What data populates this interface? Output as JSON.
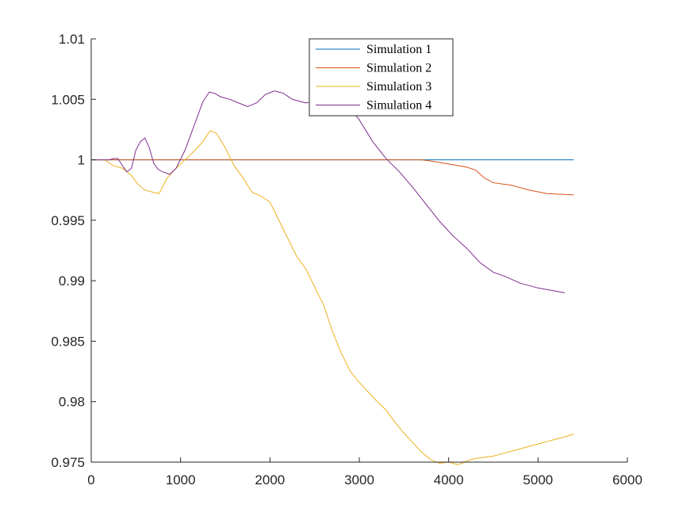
{
  "chart_data": {
    "type": "line",
    "title": "",
    "xlabel": "",
    "ylabel": "",
    "xlim": [
      0,
      6000
    ],
    "ylim": [
      0.975,
      1.01
    ],
    "xticks": [
      0,
      1000,
      2000,
      3000,
      4000,
      5000,
      6000
    ],
    "xtick_labels": [
      "0",
      "1000",
      "2000",
      "3000",
      "4000",
      "5000",
      "6000"
    ],
    "yticks": [
      0.975,
      0.98,
      0.985,
      0.99,
      0.995,
      1,
      1.005,
      1.01
    ],
    "ytick_labels": [
      "0.975",
      "0.98",
      "0.985",
      "0.99",
      "0.995",
      "1",
      "1.005",
      "1.01"
    ],
    "grid": false,
    "legend_position": "top-center",
    "series": [
      {
        "name": "Simulation 1",
        "color": "#0072BD",
        "x": [
          0,
          1000,
          2000,
          3000,
          4000,
          5000,
          5400
        ],
        "y": [
          1,
          1,
          1,
          1,
          1,
          1,
          1
        ]
      },
      {
        "name": "Simulation 2",
        "color": "#D95319",
        "x": [
          0,
          1000,
          2000,
          3000,
          3700,
          3800,
          4000,
          4200,
          4300,
          4400,
          4500,
          4700,
          4900,
          5100,
          5400
        ],
        "y": [
          1,
          1,
          1,
          1,
          1,
          0.9999,
          0.99965,
          0.9994,
          0.99915,
          0.9985,
          0.9981,
          0.9979,
          0.9975,
          0.9972,
          0.9971
        ]
      },
      {
        "name": "Simulation 3",
        "color": "#EDB120",
        "x": [
          0,
          150,
          250,
          350,
          450,
          520,
          600,
          700,
          760,
          850,
          950,
          1050,
          1150,
          1250,
          1330,
          1400,
          1500,
          1600,
          1700,
          1800,
          1900,
          2000,
          2100,
          2200,
          2300,
          2400,
          2500,
          2600,
          2700,
          2800,
          2900,
          3000,
          3100,
          3200,
          3300,
          3400,
          3500,
          3600,
          3700,
          3800,
          3900,
          4000,
          4100,
          4150,
          4200,
          4300,
          4400,
          4500,
          4600,
          4700,
          4800,
          4900,
          5000,
          5100,
          5200,
          5300,
          5400
        ],
        "y": [
          1,
          1,
          0.9995,
          0.9993,
          0.9987,
          0.998,
          0.9975,
          0.9973,
          0.9972,
          0.9985,
          0.9993,
          1,
          1.0007,
          1.0015,
          1.0024,
          1.0022,
          1.001,
          0.9995,
          0.9985,
          0.9973,
          0.997,
          0.9965,
          0.995,
          0.9935,
          0.992,
          0.991,
          0.9895,
          0.988,
          0.9858,
          0.984,
          0.9825,
          0.9816,
          0.9808,
          0.98,
          0.9793,
          0.9783,
          0.9774,
          0.9766,
          0.9758,
          0.9752,
          0.9749,
          0.975,
          0.9748,
          0.9749,
          0.9751,
          0.9753,
          0.9754,
          0.9755,
          0.9757,
          0.9759,
          0.9761,
          0.9763,
          0.9765,
          0.9767,
          0.9769,
          0.9771,
          0.9773
        ]
      },
      {
        "name": "Simulation 4",
        "color": "#7E2F8E",
        "x": [
          0,
          100,
          200,
          250,
          300,
          350,
          400,
          450,
          500,
          550,
          600,
          650,
          700,
          750,
          800,
          880,
          950,
          1050,
          1150,
          1250,
          1320,
          1380,
          1450,
          1550,
          1650,
          1750,
          1850,
          1950,
          2050,
          2150,
          2250,
          2400,
          2550,
          2700,
          2850,
          3000,
          3150,
          3300,
          3450,
          3600,
          3750,
          3900,
          4050,
          4200,
          4350,
          4500,
          4650,
          4800,
          5000,
          5300
        ],
        "y": [
          1,
          1,
          1,
          1.0001,
          1.0001,
          0.9995,
          0.999,
          0.9993,
          1.0008,
          1.0015,
          1.0018,
          1.001,
          0.9997,
          0.9992,
          0.999,
          0.9988,
          0.9993,
          1.0008,
          1.0028,
          1.0048,
          1.0056,
          1.0055,
          1.0052,
          1.005,
          1.0047,
          1.0044,
          1.0047,
          1.0054,
          1.0057,
          1.0055,
          1.005,
          1.0047,
          1.0049,
          1.0054,
          1.0047,
          1.0033,
          1.0015,
          1.0001,
          0.999,
          0.9977,
          0.9963,
          0.9949,
          0.9937,
          0.9927,
          0.9915,
          0.9907,
          0.9903,
          0.9898,
          0.9894,
          0.989
        ]
      }
    ]
  }
}
